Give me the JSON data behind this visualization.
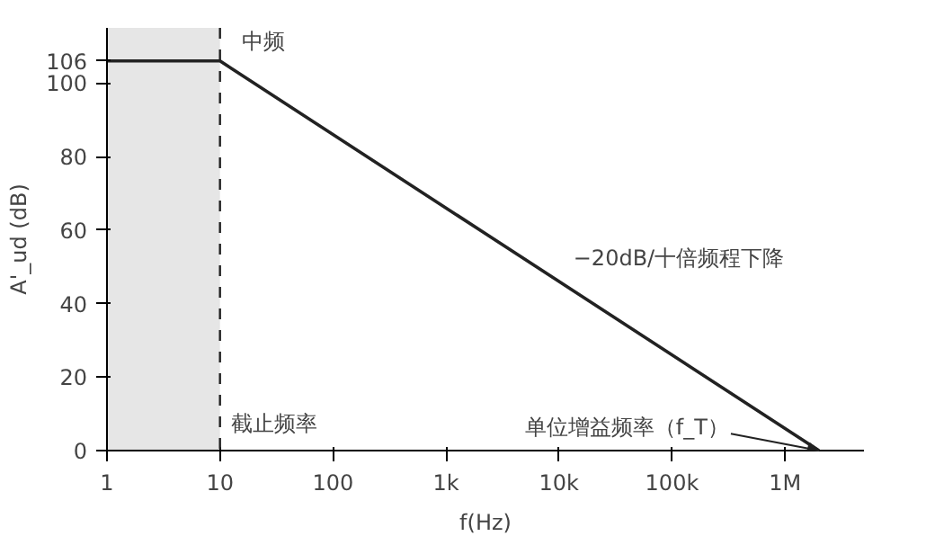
{
  "chart_data": {
    "type": "line",
    "xlabel": "f(Hz)",
    "ylabel": "A'_ud (dB)",
    "log": "x",
    "grid": false,
    "marker": "none",
    "line_style": "solid",
    "x": [
      1,
      10,
      2000000
    ],
    "series": [
      {
        "color": "#222222",
        "values": [
          106,
          106,
          0
        ]
      }
    ],
    "xlim": [
      1,
      5000000
    ],
    "ylim": [
      0,
      115
    ],
    "xticks": [
      1,
      10,
      100,
      {
        "value": 1000,
        "label": "1k"
      },
      {
        "value": 10000,
        "label": "10k"
      },
      {
        "value": 100000,
        "label": "100k"
      },
      {
        "value": 1000000,
        "label": "1M"
      }
    ],
    "yticks": [
      0,
      20,
      40,
      60,
      80,
      100,
      106
    ],
    "bands": [
      {
        "axis": "x",
        "from": 1,
        "to": 10,
        "color": "#e6e6e6"
      }
    ],
    "ref_lines": [
      {
        "axis": "x",
        "value": 10,
        "label": "截止频率",
        "line_style": "dashed"
      }
    ],
    "annotations": [
      {
        "text": "中频",
        "x": 10,
        "y": 106
      },
      {
        "text": "−20dB/十倍频程下降",
        "x": 10000,
        "y": 46
      },
      {
        "text": "单位增益频率（f_T）",
        "x": 2000000,
        "y": 0
      }
    ]
  }
}
